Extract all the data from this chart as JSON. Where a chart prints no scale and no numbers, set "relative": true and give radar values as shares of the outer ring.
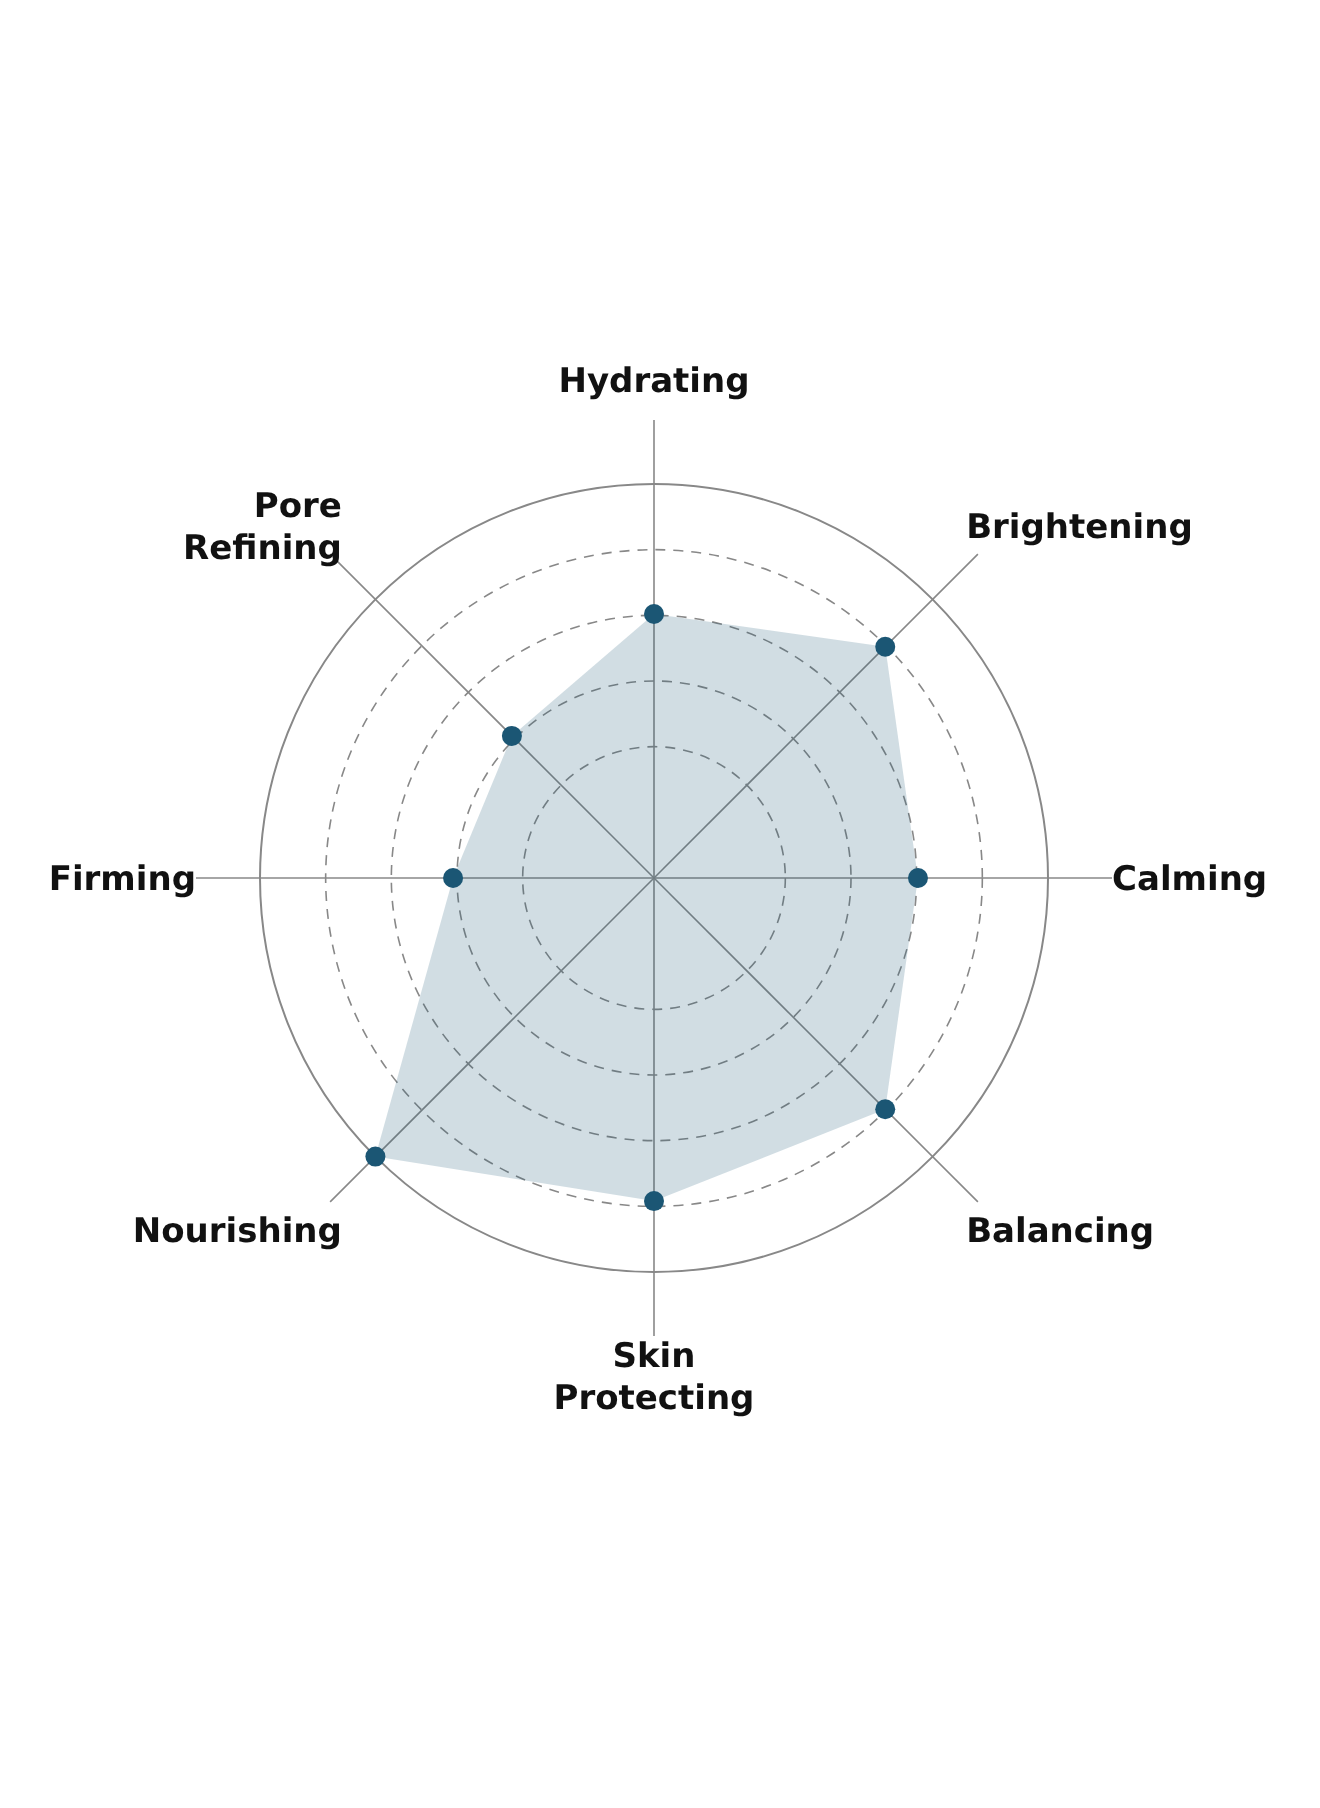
{
  "chart_data": {
    "type": "radar",
    "relative": true,
    "grid": true,
    "marker": "circle",
    "categories": [
      "Hydrating",
      "Brightening",
      "Calming",
      "Balancing",
      "Skin Protecting",
      "Nourishing",
      "Firming",
      "Pore Refining"
    ],
    "series": [
      {
        "color": "#1b5674",
        "values": [
          0.67,
          0.83,
          0.67,
          0.83,
          0.82,
          1.0,
          0.51,
          0.51
        ]
      }
    ]
  }
}
